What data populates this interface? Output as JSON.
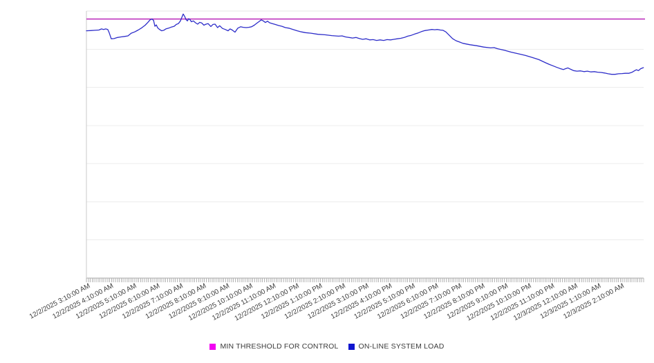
{
  "chart_data": {
    "type": "line",
    "title": "",
    "xlabel": "",
    "ylabel": "",
    "xlim_hours": [
      0,
      24
    ],
    "ylim": [
      0,
      100
    ],
    "grid": {
      "horizontal_divisions": 7,
      "y_tick_labels_visible": false,
      "minor_x_ticks": 288
    },
    "x_axis": {
      "label_rotation_deg": -28,
      "labels": [
        "12/2/2025 3:10:00 AM",
        "12/2/2025 4:10:00 AM",
        "12/2/2025 5:10:00 AM",
        "12/2/2025 6:10:00 AM",
        "12/2/2025 7:10:00 AM",
        "12/2/2025 8:10:00 AM",
        "12/2/2025 9:10:00 AM",
        "12/2/2025 10:10:00 AM",
        "12/2/2025 11:10:00 AM",
        "12/2/2025 12:10:00 PM",
        "12/2/2025 1:10:00 PM",
        "12/2/2025 2:10:00 PM",
        "12/2/2025 3:10:00 PM",
        "12/2/2025 4:10:00 PM",
        "12/2/2025 5:10:00 PM",
        "12/2/2025 6:10:00 PM",
        "12/2/2025 7:10:00 PM",
        "12/2/2025 8:10:00 PM",
        "12/2/2025 9:10:00 PM",
        "12/2/2025 10:10:00 PM",
        "12/2/2025 11:10:00 PM",
        "12/3/2025 12:10:00 AM",
        "12/3/2025 1:10:00 AM",
        "12/3/2025 2:10:00 AM"
      ]
    },
    "legend_position": "bottom-center",
    "series": [
      {
        "name": "MIN THRESHOLD FOR CONTROL",
        "type": "constant",
        "value": 97.0,
        "color": "#be32be",
        "legend_color": "#f203f2"
      },
      {
        "name": "ON-LINE SYSTEM LOAD",
        "type": "line",
        "color": "#2c2cc9",
        "legend_color": "#1016cf",
        "points": [
          [
            0,
            92.6
          ],
          [
            0.18,
            92.7
          ],
          [
            0.36,
            92.8
          ],
          [
            0.54,
            92.9
          ],
          [
            0.65,
            93.3
          ],
          [
            0.74,
            93.1
          ],
          [
            0.83,
            93.3
          ],
          [
            0.92,
            93.1
          ],
          [
            0.98,
            91.9
          ],
          [
            1.07,
            89.6
          ],
          [
            1.19,
            89.7
          ],
          [
            1.34,
            90.1
          ],
          [
            1.49,
            90.3
          ],
          [
            1.64,
            90.5
          ],
          [
            1.79,
            90.7
          ],
          [
            1.93,
            91.7
          ],
          [
            2.08,
            92.2
          ],
          [
            2.23,
            92.9
          ],
          [
            2.38,
            93.7
          ],
          [
            2.53,
            94.7
          ],
          [
            2.65,
            95.8
          ],
          [
            2.74,
            96.7
          ],
          [
            2.83,
            97.0
          ],
          [
            2.89,
            96.5
          ],
          [
            2.95,
            94.3
          ],
          [
            3.01,
            94.8
          ],
          [
            3.07,
            93.7
          ],
          [
            3.15,
            93.1
          ],
          [
            3.24,
            92.6
          ],
          [
            3.33,
            92.8
          ],
          [
            3.42,
            93.3
          ],
          [
            3.54,
            93.6
          ],
          [
            3.66,
            94.0
          ],
          [
            3.78,
            94.3
          ],
          [
            3.87,
            95.0
          ],
          [
            3.96,
            95.3
          ],
          [
            4.05,
            96.3
          ],
          [
            4.11,
            97.6
          ],
          [
            4.17,
            98.9
          ],
          [
            4.23,
            98.0
          ],
          [
            4.29,
            96.8
          ],
          [
            4.35,
            96.3
          ],
          [
            4.4,
            97.1
          ],
          [
            4.46,
            96.8
          ],
          [
            4.52,
            96.0
          ],
          [
            4.61,
            96.3
          ],
          [
            4.7,
            95.6
          ],
          [
            4.79,
            95.1
          ],
          [
            4.88,
            95.8
          ],
          [
            4.97,
            95.5
          ],
          [
            5.06,
            94.7
          ],
          [
            5.15,
            95.1
          ],
          [
            5.24,
            95.3
          ],
          [
            5.36,
            94.2
          ],
          [
            5.45,
            95.0
          ],
          [
            5.54,
            95.1
          ],
          [
            5.65,
            93.8
          ],
          [
            5.74,
            94.5
          ],
          [
            5.86,
            93.5
          ],
          [
            5.98,
            93.1
          ],
          [
            6.1,
            92.6
          ],
          [
            6.19,
            93.3
          ],
          [
            6.28,
            92.9
          ],
          [
            6.4,
            92.1
          ],
          [
            6.52,
            93.6
          ],
          [
            6.64,
            94.1
          ],
          [
            6.76,
            93.9
          ],
          [
            6.88,
            93.8
          ],
          [
            6.99,
            93.9
          ],
          [
            7.11,
            94.1
          ],
          [
            7.23,
            94.7
          ],
          [
            7.35,
            95.5
          ],
          [
            7.44,
            96.1
          ],
          [
            7.53,
            96.7
          ],
          [
            7.62,
            96.3
          ],
          [
            7.71,
            95.7
          ],
          [
            7.8,
            96.2
          ],
          [
            7.89,
            95.6
          ],
          [
            8.01,
            95.3
          ],
          [
            8.13,
            95.0
          ],
          [
            8.27,
            94.6
          ],
          [
            8.42,
            94.3
          ],
          [
            8.57,
            93.8
          ],
          [
            8.72,
            93.6
          ],
          [
            8.9,
            93.1
          ],
          [
            9.08,
            92.6
          ],
          [
            9.26,
            92.2
          ],
          [
            9.43,
            91.9
          ],
          [
            9.67,
            91.7
          ],
          [
            9.97,
            91.3
          ],
          [
            10.27,
            91.1
          ],
          [
            10.57,
            90.8
          ],
          [
            10.86,
            90.6
          ],
          [
            11.01,
            90.7
          ],
          [
            11.16,
            90.3
          ],
          [
            11.46,
            89.9
          ],
          [
            11.61,
            90.1
          ],
          [
            11.76,
            89.7
          ],
          [
            11.9,
            89.4
          ],
          [
            12.05,
            89.6
          ],
          [
            12.2,
            89.2
          ],
          [
            12.35,
            89.3
          ],
          [
            12.5,
            89.0
          ],
          [
            12.65,
            89.2
          ],
          [
            12.8,
            89.0
          ],
          [
            12.95,
            89.3
          ],
          [
            13.1,
            89.2
          ],
          [
            13.24,
            89.4
          ],
          [
            13.39,
            89.6
          ],
          [
            13.54,
            89.8
          ],
          [
            13.69,
            90.1
          ],
          [
            13.84,
            90.6
          ],
          [
            13.99,
            90.9
          ],
          [
            14.14,
            91.4
          ],
          [
            14.29,
            91.8
          ],
          [
            14.43,
            92.3
          ],
          [
            14.58,
            92.7
          ],
          [
            14.73,
            92.9
          ],
          [
            14.88,
            93.1
          ],
          [
            15.0,
            93.0
          ],
          [
            15.12,
            93.1
          ],
          [
            15.24,
            92.9
          ],
          [
            15.36,
            92.8
          ],
          [
            15.48,
            92.2
          ],
          [
            15.63,
            90.9
          ],
          [
            15.77,
            89.7
          ],
          [
            15.92,
            88.9
          ],
          [
            16.07,
            88.4
          ],
          [
            16.22,
            87.9
          ],
          [
            16.52,
            87.4
          ],
          [
            16.82,
            87.0
          ],
          [
            17.11,
            86.5
          ],
          [
            17.41,
            86.2
          ],
          [
            17.56,
            86.3
          ],
          [
            17.71,
            85.9
          ],
          [
            18.01,
            85.3
          ],
          [
            18.3,
            84.6
          ],
          [
            18.6,
            84.0
          ],
          [
            18.9,
            83.4
          ],
          [
            19.2,
            82.6
          ],
          [
            19.49,
            81.8
          ],
          [
            19.79,
            80.6
          ],
          [
            19.94,
            80.0
          ],
          [
            20.09,
            79.5
          ],
          [
            20.24,
            79.0
          ],
          [
            20.39,
            78.5
          ],
          [
            20.54,
            78.1
          ],
          [
            20.63,
            78.4
          ],
          [
            20.74,
            78.7
          ],
          [
            20.86,
            78.2
          ],
          [
            20.98,
            77.7
          ],
          [
            21.13,
            77.5
          ],
          [
            21.28,
            77.6
          ],
          [
            21.43,
            77.3
          ],
          [
            21.58,
            77.5
          ],
          [
            21.73,
            77.2
          ],
          [
            21.88,
            77.3
          ],
          [
            22.02,
            77.1
          ],
          [
            22.17,
            77.0
          ],
          [
            22.32,
            76.8
          ],
          [
            22.47,
            76.5
          ],
          [
            22.62,
            76.3
          ],
          [
            22.77,
            76.3
          ],
          [
            22.92,
            76.5
          ],
          [
            23.07,
            76.6
          ],
          [
            23.21,
            76.7
          ],
          [
            23.36,
            76.7
          ],
          [
            23.51,
            77.1
          ],
          [
            23.6,
            77.6
          ],
          [
            23.69,
            78.0
          ],
          [
            23.78,
            77.7
          ],
          [
            23.87,
            78.4
          ],
          [
            23.96,
            78.7
          ],
          [
            23.99,
            78.8
          ]
        ]
      }
    ],
    "style": {
      "background": "#ffffff",
      "grid_line_color": "#ececec",
      "plot_top_border_color": "#e4e4e4",
      "left_axis_color": "#c9c9c9",
      "bottom_axis_color": "#a6a6a6",
      "minor_tick_color": "#b3b3b3",
      "axis_label_color": "#3c3c3c",
      "legend_text_color": "#3a3a3a"
    }
  },
  "legend": {
    "items": [
      {
        "label": "MIN THRESHOLD FOR CONTROL"
      },
      {
        "label": "ON-LINE SYSTEM LOAD"
      }
    ]
  }
}
